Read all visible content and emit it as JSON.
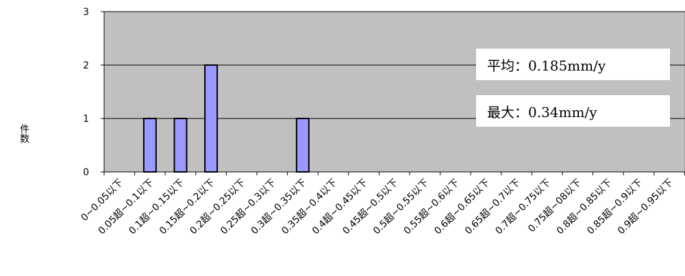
{
  "chart_data": {
    "type": "bar",
    "ylabel": "件数",
    "xlabel": "",
    "ylim": [
      0,
      3
    ],
    "yticks": [
      "0",
      "1",
      "2",
      "3"
    ],
    "grid": "horizontal",
    "categories": [
      "0~0.05以下",
      "0.05超~0.1以下",
      "0.1超~0.15以下",
      "0.15超~0.2以下",
      "0.2超~0.25以下",
      "0.25超~0.3以下",
      "0.3超~0.35以下",
      "0.35超~0.4以下",
      "0.4超~0.45以下",
      "0.45超~0.5以下",
      "0.5超~0.55以下",
      "0.55超~0.6以下",
      "0.6超~0.65以下",
      "0.65超~0.7以下",
      "0.7超~0.75以下",
      "0.75超~08以下",
      "0.8超~0.85以下",
      "0.85超~0.9以下",
      "0.9超~0.95以下"
    ],
    "values": [
      0,
      1,
      1,
      2,
      0,
      0,
      1,
      0,
      0,
      0,
      0,
      0,
      0,
      0,
      0,
      0,
      0,
      0,
      0
    ],
    "colors": {
      "plot_bg": "#c0c0c0",
      "bar_fill": "#9999ff",
      "bar_stroke": "#000000"
    },
    "annotations": [
      "平均：0.185mm/y",
      "最大：0.34mm/y"
    ]
  }
}
